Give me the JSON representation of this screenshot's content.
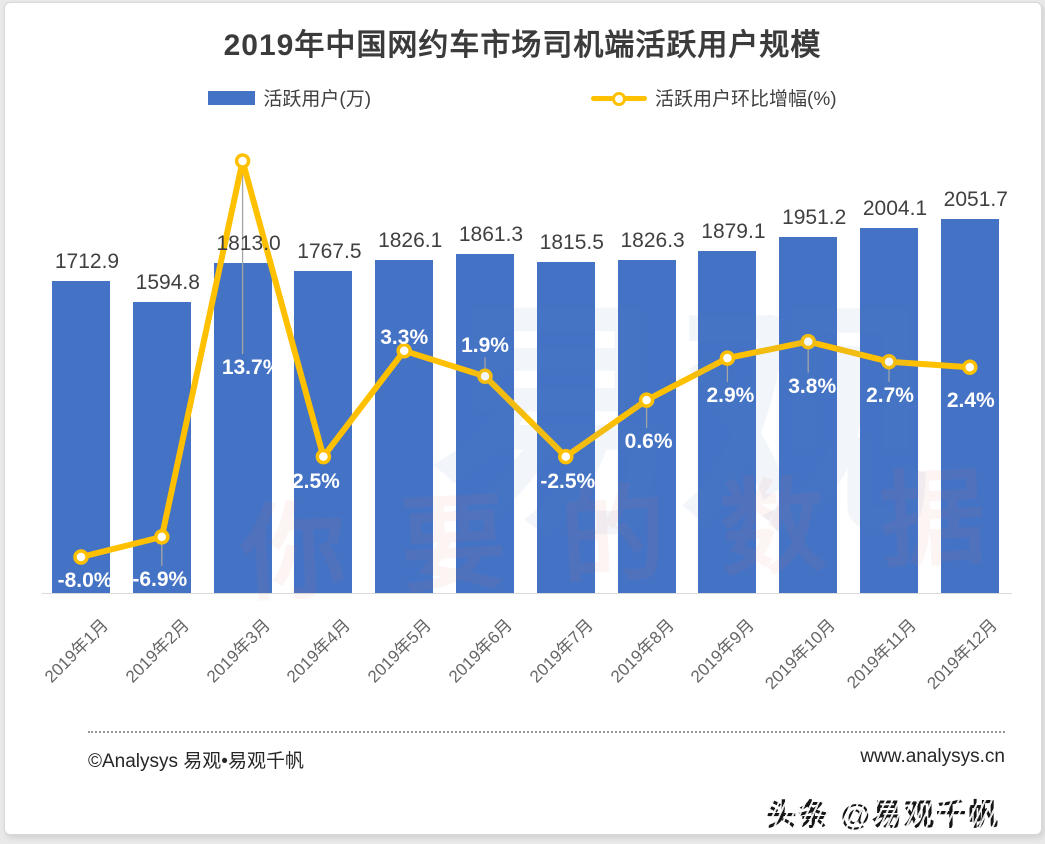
{
  "title": "2019年中国网约车市场司机端活跃用户规模",
  "chart_data": {
    "type": "combo",
    "categories": [
      "2019年1月",
      "2019年2月",
      "2019年3月",
      "2019年4月",
      "2019年5月",
      "2019年6月",
      "2019年7月",
      "2019年8月",
      "2019年9月",
      "2019年10月",
      "2019年11月",
      "2019年12月"
    ],
    "series": [
      {
        "name": "活跃用户(万)",
        "type": "bar",
        "color": "#4472C4",
        "values": [
          1712.9,
          1594.8,
          1813.0,
          1767.5,
          1826.1,
          1861.3,
          1815.5,
          1826.3,
          1879.1,
          1951.2,
          2004.1,
          2051.7
        ],
        "labels": [
          "1712.9",
          "1594.8",
          "1813.0",
          "1767.5",
          "1826.1",
          "1861.3",
          "1815.5",
          "1826.3",
          "1879.1",
          "1951.2",
          "2004.1",
          "2051.7"
        ]
      },
      {
        "name": "活跃用户环比增幅(%)",
        "type": "line",
        "color": "#FFC000",
        "values": [
          -8.0,
          -6.9,
          13.7,
          -2.5,
          3.3,
          1.9,
          -2.5,
          0.6,
          2.9,
          3.8,
          2.7,
          2.4
        ],
        "labels": [
          "-8.0%",
          "-6.9%",
          "13.7%",
          "-2.5%",
          "3.3%",
          "1.9%",
          "-2.5%",
          "0.6%",
          "2.9%",
          "3.8%",
          "2.7%",
          "2.4%"
        ]
      }
    ],
    "value_axis_start": 0,
    "grid": false,
    "legend_position": "top"
  },
  "colors": {
    "bar": "#4472C4",
    "line": "#FFC000",
    "marker_fill": "#ffffff",
    "leader": "#a6a6a6",
    "axis": "#d9d9d9",
    "bar_label_text": "#404040",
    "pct_label_text": "#ffffff"
  },
  "footer": {
    "left": "©Analysys 易观•易观千帆",
    "right": "www.analysys.cn"
  },
  "stamp": {
    "text": "头条 @易观千帆"
  },
  "watermark": {
    "blue": "易观",
    "pink": "你要的数据"
  }
}
